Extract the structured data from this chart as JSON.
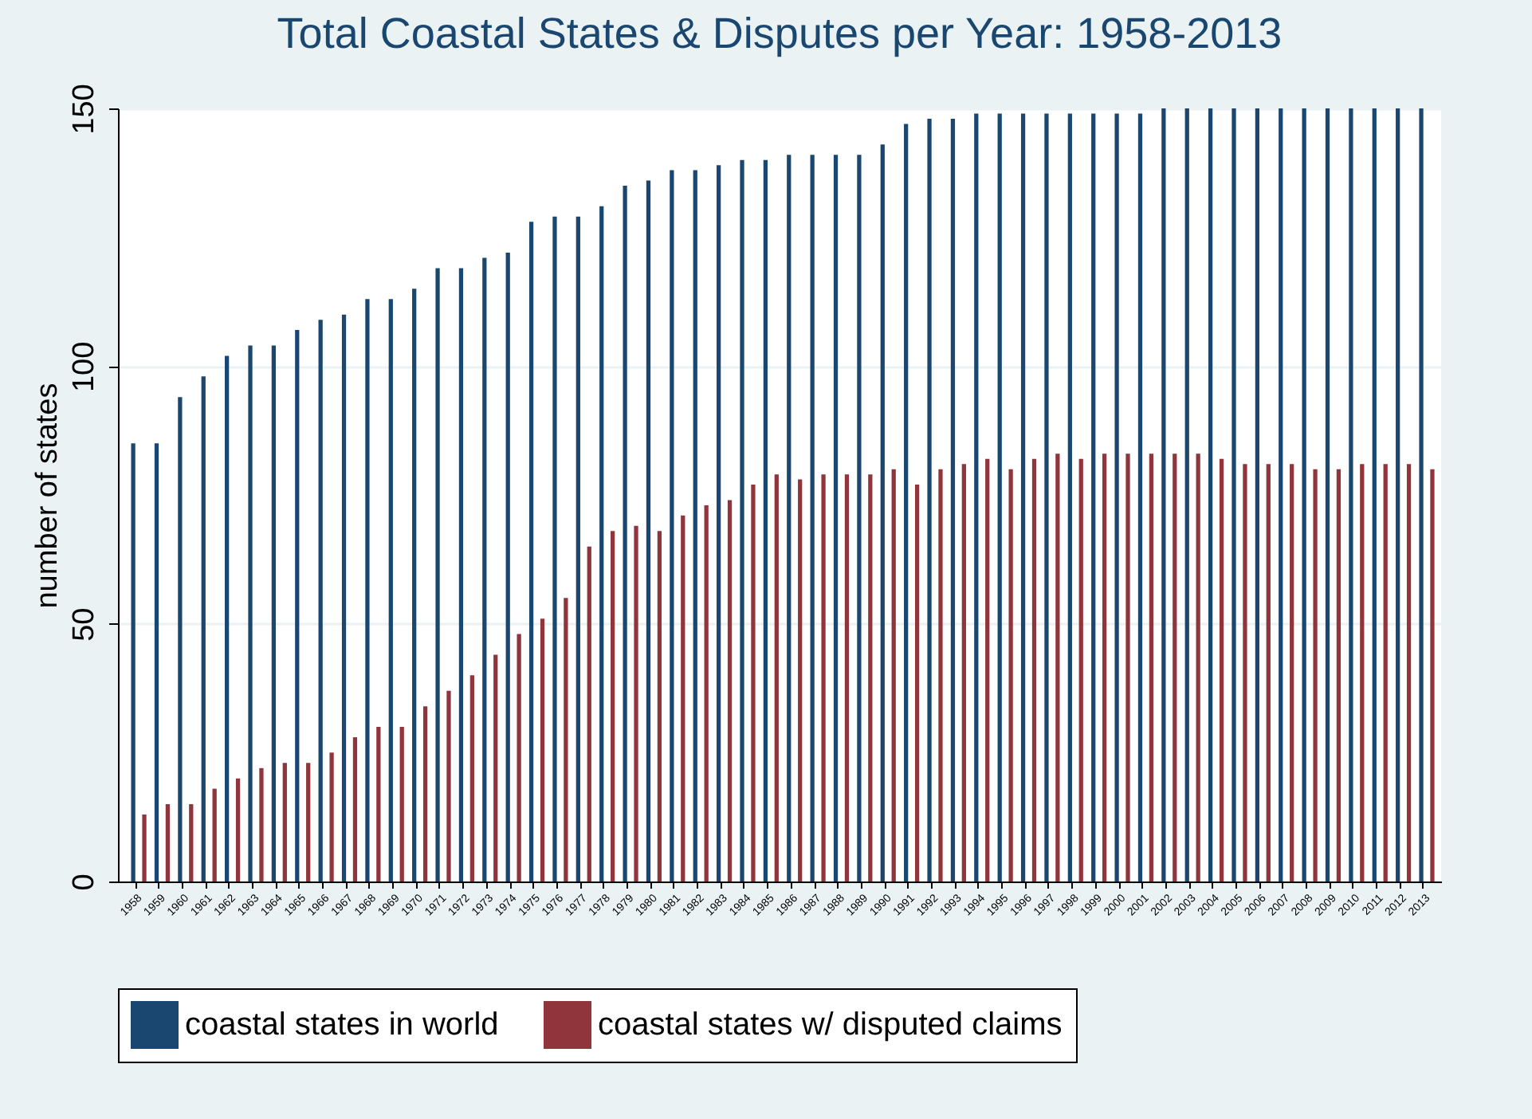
{
  "chart_data": {
    "type": "bar",
    "title": "Total Coastal States & Disputes per Year: 1958-2013",
    "ylabel": "number of states",
    "categories": [
      "1958",
      "1959",
      "1960",
      "1961",
      "1962",
      "1963",
      "1964",
      "1965",
      "1966",
      "1967",
      "1968",
      "1969",
      "1970",
      "1971",
      "1972",
      "1973",
      "1974",
      "1975",
      "1976",
      "1977",
      "1978",
      "1979",
      "1980",
      "1981",
      "1982",
      "1983",
      "1984",
      "1985",
      "1986",
      "1987",
      "1988",
      "1989",
      "1990",
      "1991",
      "1992",
      "1993",
      "1994",
      "1995",
      "1996",
      "1997",
      "1998",
      "1999",
      "2000",
      "2001",
      "2002",
      "2003",
      "2004",
      "2005",
      "2006",
      "2007",
      "2008",
      "2009",
      "2010",
      "2011",
      "2012",
      "2013"
    ],
    "series": [
      {
        "name": "coastal states in world",
        "color": "#1a476f",
        "values": [
          85,
          85,
          94,
          98,
          102,
          104,
          104,
          107,
          109,
          110,
          113,
          113,
          115,
          119,
          119,
          121,
          122,
          128,
          129,
          129,
          131,
          135,
          136,
          138,
          138,
          139,
          140,
          140,
          141,
          141,
          141,
          141,
          143,
          147,
          148,
          148,
          149,
          149,
          149,
          149,
          149,
          149,
          149,
          149,
          150,
          150,
          150,
          150,
          150,
          150,
          150,
          150,
          150,
          150,
          150,
          150
        ]
      },
      {
        "name": "coastal states w/ disputed claims",
        "color": "#90353b",
        "values": [
          13,
          15,
          15,
          18,
          20,
          22,
          23,
          23,
          25,
          28,
          30,
          30,
          34,
          37,
          40,
          44,
          48,
          51,
          55,
          65,
          68,
          69,
          68,
          71,
          73,
          74,
          77,
          79,
          78,
          79,
          79,
          79,
          80,
          77,
          80,
          81,
          82,
          80,
          82,
          83,
          82,
          83,
          83,
          83,
          83,
          83,
          82,
          81,
          81,
          81,
          80,
          80,
          81,
          81,
          81,
          80
        ]
      }
    ],
    "ylim": [
      0,
      150
    ],
    "yticks": [
      0,
      50,
      100,
      150
    ],
    "grid": "y",
    "legend": "bottom"
  }
}
